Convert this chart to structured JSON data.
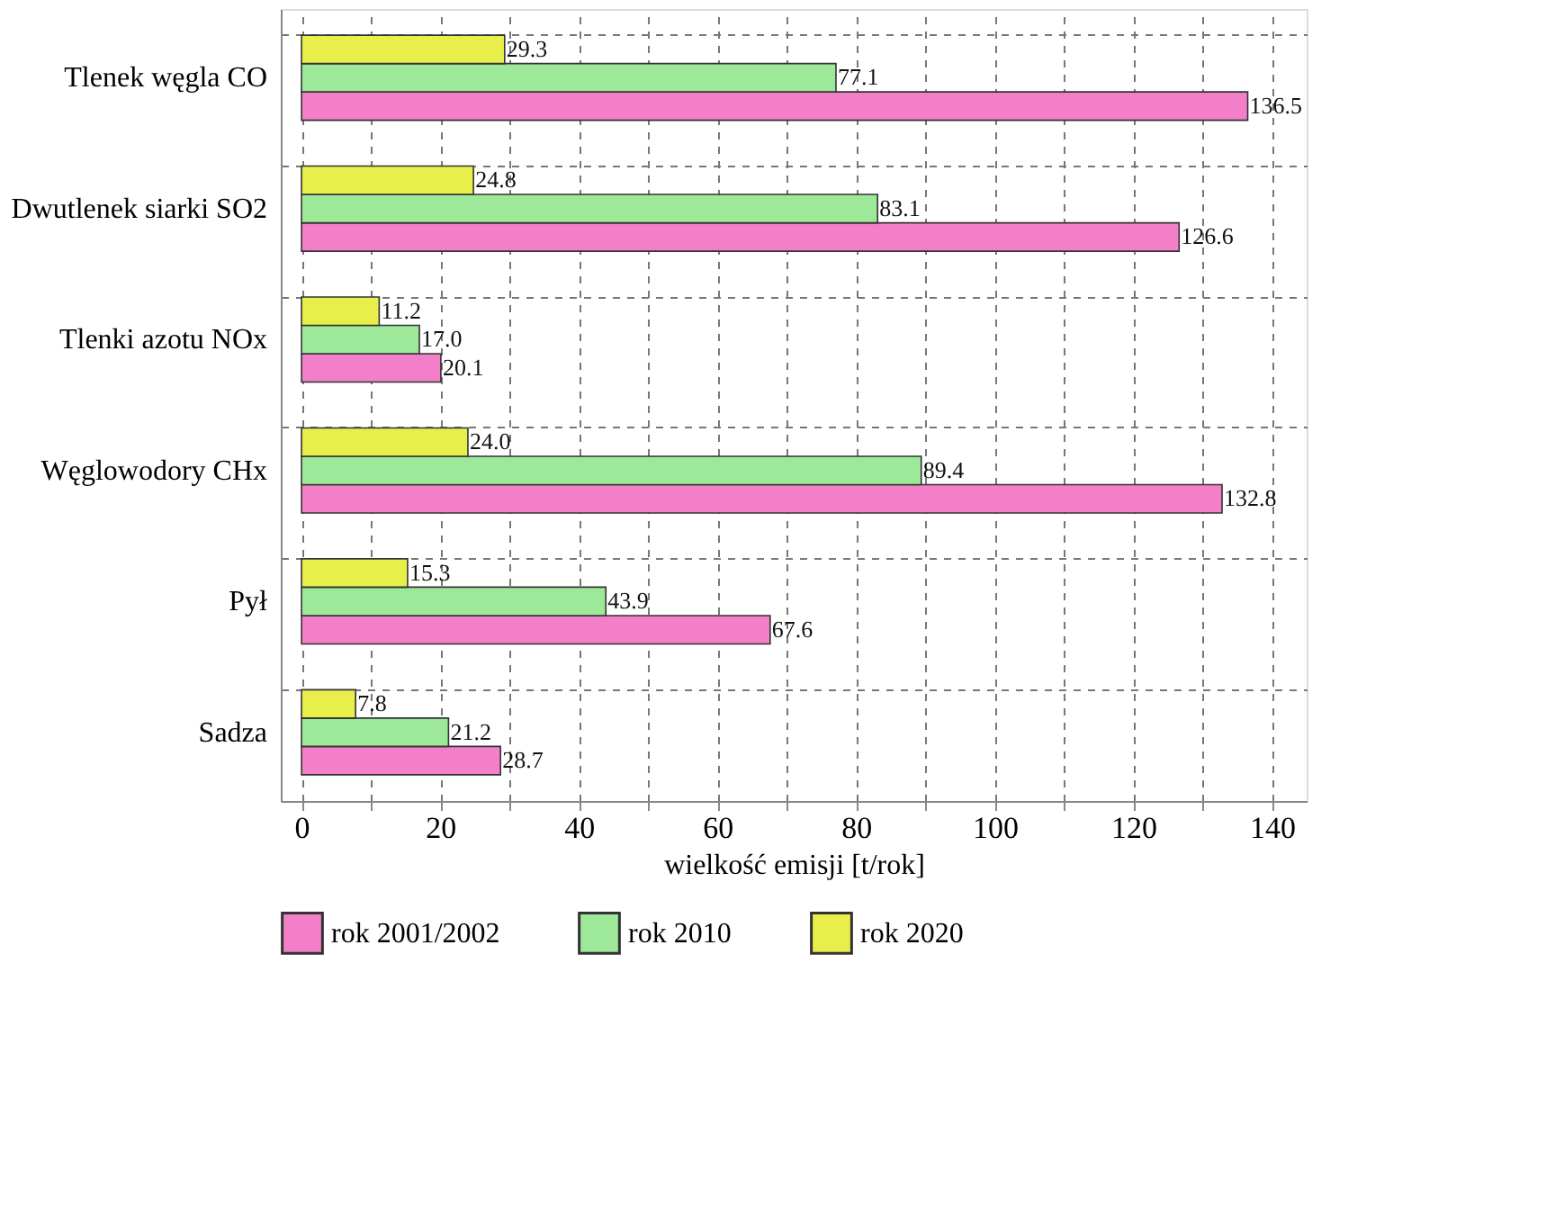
{
  "chart_data": {
    "type": "bar",
    "orientation": "horizontal",
    "xlabel": "wielkość emisji [t/rok]",
    "categories": [
      "Tlenek węgla CO",
      "Dwutlenek siarki SO2",
      "Tlenki azotu NOx",
      "Węglowodory CHx",
      "Pył",
      "Sadza"
    ],
    "series": [
      {
        "name": "rok 2001/2002",
        "color": "#f27fc8",
        "values": [
          136.5,
          126.6,
          20.1,
          132.8,
          67.6,
          28.7
        ],
        "value_labels": [
          "136.5",
          "126.6",
          "20.1",
          "132.8",
          "67.6",
          "28.7"
        ]
      },
      {
        "name": "rok 2010",
        "color": "#9ee89a",
        "values": [
          77.1,
          83.1,
          17.0,
          89.4,
          43.9,
          21.2
        ],
        "value_labels": [
          "77.1",
          "83.1",
          "17.0",
          "89.4",
          "43.9",
          "21.2"
        ]
      },
      {
        "name": "rok 2020",
        "color": "#e8ee4a",
        "values": [
          29.3,
          24.8,
          11.2,
          24.0,
          15.3,
          7.8
        ],
        "value_labels": [
          "29.3",
          "24.8",
          "11.2",
          "24.0",
          "15.3",
          "7.8"
        ]
      }
    ],
    "xlim": [
      -3,
      145
    ],
    "xticks": [
      0,
      {
        "value": 10,
        "label": null
      },
      20,
      {
        "value": 30,
        "label": null
      },
      40,
      {
        "value": 50,
        "label": null
      },
      60,
      {
        "value": 70,
        "label": null
      },
      80,
      {
        "value": 90,
        "label": null
      },
      100,
      {
        "value": 110,
        "label": null
      },
      120,
      {
        "value": 130,
        "label": null
      },
      140
    ],
    "grid": true,
    "legend": "bottom"
  }
}
